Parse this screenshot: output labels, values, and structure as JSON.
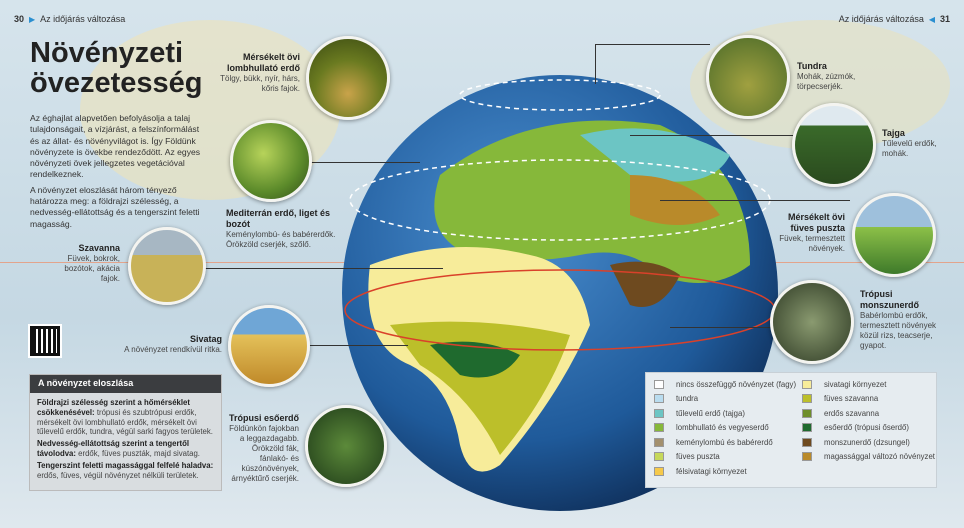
{
  "header": {
    "left_page": "30",
    "left_title": "Az időjárás változása",
    "right_title": "Az időjárás változása",
    "right_page": "31"
  },
  "title_line1": "Növényzeti",
  "title_line2": "övezetesség",
  "intro": [
    "Az éghajlat alapvetően befolyásolja a talaj tulajdonságait, a vízjárást, a felszínformálást és az állat- és növényvilágot is. Így Földünk növényzete is övekbe rendeződött. Az egyes növényzeti övek jellegzetes vegetációval rendelkeznek.",
    "A növényzet eloszlását három tényező határozza meg: a földrajzi szélesség, a nedvesség-ellátottság és a tengerszint feletti magasság."
  ],
  "biomes": {
    "lombhullato": {
      "title": "Mérsékelt övi lombhullató erdő",
      "text": "Tölgy, bükk, nyír, hárs, kőris fajok."
    },
    "mediterran": {
      "title": "Mediterrán erdő, liget és bozót",
      "text": "Keménylombú- és babérerdők. Örökzöld cserjék, szőlő."
    },
    "szavanna": {
      "title": "Szavanna",
      "text": "Füvek, bokrok, bozótok, akácia fajok."
    },
    "sivatag": {
      "title": "Sivatag",
      "text": "A növényzet rendkívül ritka."
    },
    "esoerdo": {
      "title": "Trópusi esőerdő",
      "text": "Földünkön fajokban a leggazdagabb. Örökzöld fák, fánlakó- és kúszónövények, árnyéktűrő cserjék."
    },
    "tundra": {
      "title": "Tundra",
      "text": "Mohák, zúzmók, törpecserjék."
    },
    "tajga": {
      "title": "Tajga",
      "text": "Tűlevelű erdők, mohák."
    },
    "puszta": {
      "title": "Mérsékelt övi füves puszta",
      "text": "Füvek, termesztett növények."
    },
    "monszun": {
      "title": "Trópusi monszunerdő",
      "text": "Babérlombú erdők, termesztett növények közül rizs, teacserje, gyapot."
    }
  },
  "box": {
    "title": "A növényzet eloszlása",
    "items": [
      {
        "bold": "Földrajzi szélesség szerint a hőmérséklet csökkenésével:",
        "text": " trópusi és szubtrópusi erdők, mérsékelt övi lombhullató erdők, mérsékelt övi tűlevelű erdők, tundra, végül sarki fagyos területek."
      },
      {
        "bold": "Nedvesség-ellátottság szerint a tengertől távolodva:",
        "text": " erdők, füves puszták, majd sivatag."
      },
      {
        "bold": "Tengerszint feletti magassággal felfelé haladva:",
        "text": " erdős, füves, végül növényzet nélküli területek."
      }
    ]
  },
  "legend": [
    {
      "label": "nincs összefüggő növényzet (fagy)",
      "color": "#ffffff"
    },
    {
      "label": "tundra",
      "color": "#b9dcef"
    },
    {
      "label": "tűlevelű erdő (tajga)",
      "color": "#6cc5c4"
    },
    {
      "label": "lombhullató és vegyeserdő",
      "color": "#86b83a"
    },
    {
      "label": "keménylombú és babérerdő",
      "color": "#a3906e"
    },
    {
      "label": "füves puszta",
      "color": "#c6d85a"
    },
    {
      "label": "félsivatagi környezet",
      "color": "#f6c94a"
    },
    {
      "label": "sivatagi környezet",
      "color": "#f7ec9a"
    },
    {
      "label": "füves szavanna",
      "color": "#bcbf2a"
    },
    {
      "label": "erdős szavanna",
      "color": "#6e8e2a"
    },
    {
      "label": "esőerdő (trópusi őserdő)",
      "color": "#1f6a2e"
    },
    {
      "label": "monszunerdő (dzsungel)",
      "color": "#6e4a1f"
    },
    {
      "label": "magassággal változó növényzet",
      "color": "#b98a2a"
    }
  ]
}
